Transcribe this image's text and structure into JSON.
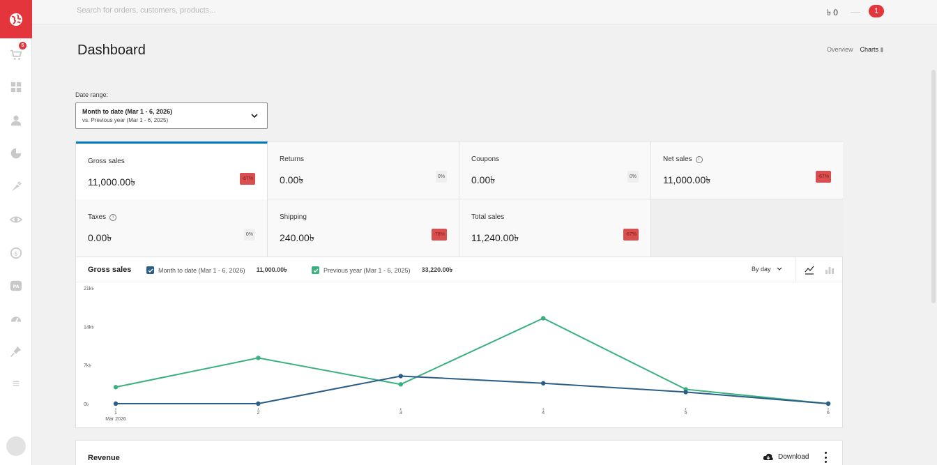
{
  "search": {
    "placeholder": "Search for orders, customers, products..."
  },
  "topbar": {
    "balance": "৳ 0",
    "notifications": "1"
  },
  "sidebar": {
    "cart_count": "5"
  },
  "page": {
    "title": "Dashboard"
  },
  "view_links": {
    "overview": "Overview",
    "charts": "Charts"
  },
  "date_range": {
    "label": "Date range:",
    "main": "Month to date (Mar 1 - 6, 2026)",
    "compare": "vs. Previous year (Mar 1 - 6, 2025)"
  },
  "cards": [
    {
      "label": "Gross sales",
      "value": "11,000.00৳",
      "delta": "-67%"
    },
    {
      "label": "Returns",
      "value": "0.00৳",
      "delta": "0%"
    },
    {
      "label": "Coupons",
      "value": "0.00৳",
      "delta": "0%"
    },
    {
      "label": "Net sales",
      "value": "11,000.00৳",
      "delta": "-67%"
    },
    {
      "label": "Taxes",
      "value": "0.00৳",
      "delta": "0%"
    },
    {
      "label": "Shipping",
      "value": "240.00৳",
      "delta": "-78%"
    },
    {
      "label": "Total sales",
      "value": "11,240.00৳",
      "delta": "-67%"
    }
  ],
  "chart_panel": {
    "title": "Gross sales",
    "legend_current": "Month to date (Mar 1 - 6, 2026)",
    "legend_current_total": "11,000.00৳",
    "legend_previous": "Previous year (Mar 1 - 6, 2025)",
    "legend_previous_total": "33,220.00৳",
    "interval": "By day"
  },
  "chart_data": {
    "type": "line",
    "x": [
      "1",
      "2",
      "3",
      "4",
      "5",
      "6"
    ],
    "x_sublabel": "Mar 2026",
    "y_ticks": [
      "0৳",
      "7k৳",
      "14k৳",
      "21k৳"
    ],
    "ylim": [
      0,
      21000
    ],
    "grid": false,
    "series": [
      {
        "name": "Month to date (Mar 1 - 6, 2026)",
        "color": "#2b5e86",
        "values": [
          0,
          0,
          5000,
          3700,
          2100,
          0
        ]
      },
      {
        "name": "Previous year (Mar 1 - 6, 2025)",
        "color": "#3bb07f",
        "values": [
          3000,
          8300,
          3500,
          15500,
          2600,
          0
        ]
      }
    ]
  },
  "revenue": {
    "title": "Revenue",
    "download": "Download"
  },
  "colors": {
    "brand": "#e3353b",
    "accent": "#007cba",
    "negative": "#d94f4f"
  }
}
